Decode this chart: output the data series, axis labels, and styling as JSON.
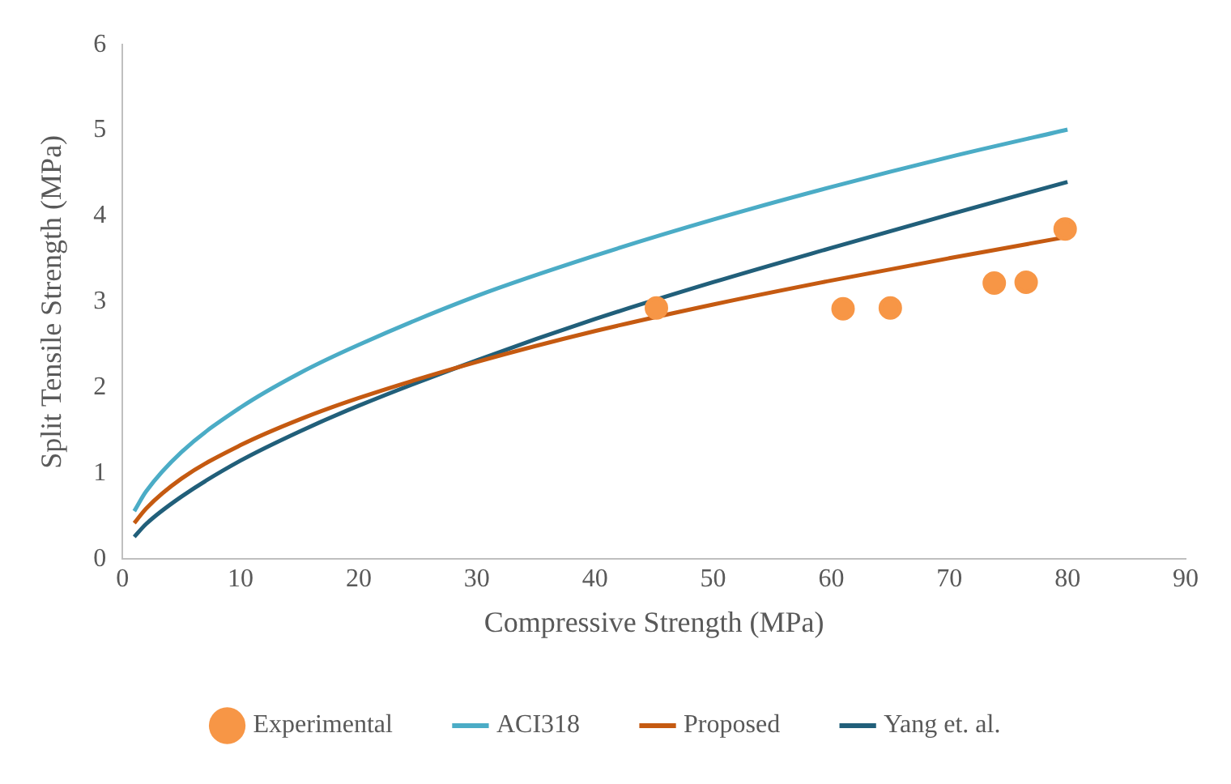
{
  "chart_data": {
    "type": "line",
    "xlabel": "Compressive Strength (MPa)",
    "ylabel": "Split Tensile Strength (MPa)",
    "xlim": [
      0,
      90
    ],
    "xticks": [
      0,
      10,
      20,
      30,
      40,
      50,
      60,
      70,
      80,
      90
    ],
    "ylim": [
      0,
      6
    ],
    "yticks": [
      0,
      1,
      2,
      3,
      4,
      5,
      6
    ],
    "grid": false,
    "legend": "bottom",
    "marker": "none",
    "series": [
      {
        "name": "Experimental",
        "type": "scatter",
        "marker": "circle",
        "color": "#f79646",
        "x": [
          45.2,
          61,
          65,
          73.8,
          76.5,
          79.8
        ],
        "values": [
          2.93,
          2.92,
          2.93,
          3.22,
          3.23,
          3.85
        ]
      },
      {
        "name": "ACI318",
        "color": "#4bacc6",
        "x": [
          1,
          2,
          5,
          10,
          15,
          20,
          30,
          40,
          50,
          60,
          70,
          80
        ],
        "values": [
          0.56,
          0.79,
          1.25,
          1.77,
          2.17,
          2.5,
          3.07,
          3.54,
          3.96,
          4.34,
          4.69,
          5.01
        ]
      },
      {
        "name": "Proposed",
        "color": "#c55a11",
        "x": [
          1,
          2,
          5,
          10,
          15,
          20,
          30,
          40,
          50,
          60,
          70,
          80
        ],
        "values": [
          0.42,
          0.59,
          0.94,
          1.33,
          1.63,
          1.88,
          2.3,
          2.66,
          2.97,
          3.25,
          3.51,
          3.76
        ]
      },
      {
        "name": "Yang et. al.",
        "color": "#215f7a",
        "x": [
          1,
          2,
          5,
          10,
          15,
          20,
          30,
          40,
          50,
          60,
          70,
          80
        ],
        "values": [
          0.26,
          0.41,
          0.73,
          1.15,
          1.49,
          1.79,
          2.32,
          2.8,
          3.23,
          3.63,
          4.02,
          4.4
        ]
      }
    ]
  }
}
